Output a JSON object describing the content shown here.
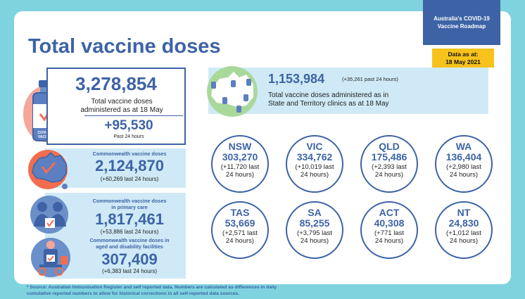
{
  "header": {
    "title": "Total vaccine doses",
    "roadmap_line1": "Australia's COVID-19",
    "roadmap_line2": "Vaccine Roadmap",
    "date_label": "Data as at:",
    "date_value": "18 May 2021"
  },
  "total": {
    "value": "3,278,854",
    "desc_line1": "Total vaccine doses",
    "desc_line2": "administered as at 18 May",
    "change": "+95,530",
    "change_label": "Past 24 hours",
    "vial_label_line1": "COVID-19",
    "vial_label_line2": "VACCINE"
  },
  "commonwealth": {
    "label": "Commonwealth vaccine doses",
    "value": "2,124,870",
    "change": "(+60,269 last 24 hours)"
  },
  "primary_care": {
    "label_line1": "Commonwealth vaccine doses",
    "label_line2": "in primary care",
    "value": "1,817,461",
    "change": "(+53,886 last 24 hours)"
  },
  "aged_care": {
    "label_line1": "Commonwealth vaccine doses in",
    "label_line2": "aged and disability facilities",
    "value": "307,409",
    "change": "(+6,383 last 24 hours)"
  },
  "clinics": {
    "value": "1,153,984",
    "change": "(+35,261 past 24 hours)",
    "desc_line1": "Total vaccine doses administered as in",
    "desc_line2": "State and Territory clinics as at 18 May"
  },
  "states": [
    {
      "code": "NSW",
      "value": "303,270",
      "change_line1": "(+11,720 last",
      "change_line2": "24 hours)"
    },
    {
      "code": "VIC",
      "value": "334,762",
      "change_line1": "(+10,019 last",
      "change_line2": "24 hours)"
    },
    {
      "code": "QLD",
      "value": "175,486",
      "change_line1": "(+2,393 last",
      "change_line2": "24 hours)"
    },
    {
      "code": "WA",
      "value": "136,404",
      "change_line1": "(+2,980 last",
      "change_line2": "24 hours)"
    },
    {
      "code": "TAS",
      "value": "53,669",
      "change_line1": "(+2,571 last",
      "change_line2": "24 hours)"
    },
    {
      "code": "SA",
      "value": "85,255",
      "change_line1": "(+3,795 last",
      "change_line2": "24 hours)"
    },
    {
      "code": "ACT",
      "value": "40,308",
      "change_line1": "(+771 last",
      "change_line2": "24 hours)"
    },
    {
      "code": "NT",
      "value": "24,830",
      "change_line1": "(+1,012 last",
      "change_line2": "24 hours)"
    }
  ],
  "footnote": {
    "line1": "* Source: Australian Immunisation Register and self reported data. Numbers are calculated as differences in daily",
    "line2": "cumulative reported numbers to allow for historical corrections in all self-reported data sources."
  },
  "colors": {
    "accent_blue": "#3d63a6",
    "background_teal": "#7fd3df",
    "panel_light_blue": "#cfeaf6",
    "date_yellow": "#f7c21b",
    "icon_orange": "#f26d4f"
  },
  "icons": [
    "vaccine-vial-icon",
    "australia-map-icon",
    "doctor-patient-icon",
    "aged-care-icon",
    "clinics-map-icon"
  ]
}
